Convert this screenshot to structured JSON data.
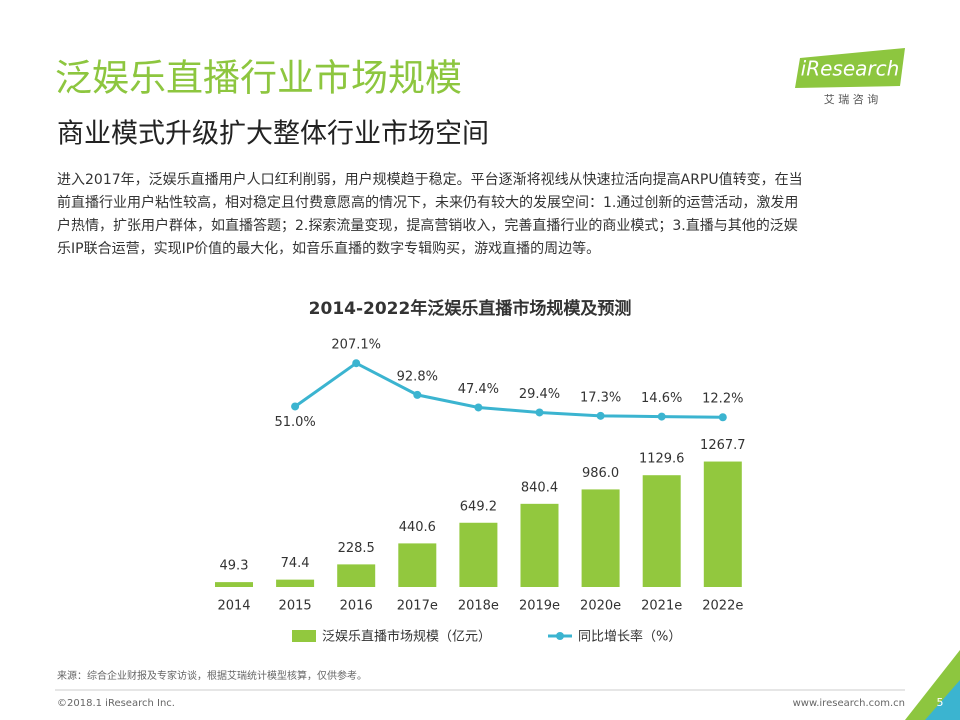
{
  "header": {
    "title": "泛娱乐直播行业市场规模",
    "subtitle": "商业模式升级扩大整体行业市场空间",
    "logo": "iResearch",
    "logo_cn": "艾 瑞 咨 询"
  },
  "paragraph": [
    "进入2017年，泛娱乐直播用户人口红利削弱，用户规模趋于稳定。平台逐渐将视线从快速拉活向提高ARPU值转变，在当",
    "前直播行业用户粘性较高，相对稳定且付费意愿高的情况下，未来仍有较大的发展空间：1.通过创新的运营活动，激发用",
    "户热情，扩张用户群体，如直播答题；2.探索流量变现，提高营销收入，完善直播行业的商业模式；3.直播与其他的泛娱",
    "乐IP联合运营，实现IP价值的最大化，如音乐直播的数字专辑购买，游戏直播的周边等。"
  ],
  "chart_data": {
    "type": "bar-line",
    "title": "2014-2022年泛娱乐直播市场规模及预测",
    "categories": [
      "2014",
      "2015",
      "2016",
      "2017e",
      "2018e",
      "2019e",
      "2020e",
      "2021e",
      "2022e"
    ],
    "series": [
      {
        "name": "泛娱乐直播市场规模（亿元）",
        "type": "bar",
        "color": "#92c83e",
        "values": [
          49.3,
          74.4,
          228.5,
          440.6,
          649.2,
          840.4,
          986.0,
          1129.6,
          1267.7
        ],
        "value_labels": [
          "49.3",
          "74.4",
          "228.5",
          "440.6",
          "649.2",
          "840.4",
          "986.0",
          "1129.6",
          "1267.7"
        ]
      },
      {
        "name": "同比增长率（%）",
        "type": "line",
        "axis": "y2",
        "color": "#3bb4d0",
        "values": [
          null,
          51.0,
          207.1,
          92.8,
          47.4,
          29.4,
          17.3,
          14.6,
          12.2
        ],
        "value_labels": [
          null,
          "51.0%",
          "207.1%",
          "92.8%",
          "47.4%",
          "29.4%",
          "17.3%",
          "14.6%",
          "12.2%"
        ]
      }
    ],
    "ylim": [
      0,
      2900
    ],
    "y2lim": [
      -600,
      435
    ],
    "legend": "bottom"
  },
  "footer": {
    "source": "来源：综合企业财报及专家访谈，根据艾瑞统计模型核算，仅供参考。",
    "copyright": "©2018.1 iResearch Inc.",
    "website": "www.iresearch.com.cn",
    "page": "5"
  }
}
